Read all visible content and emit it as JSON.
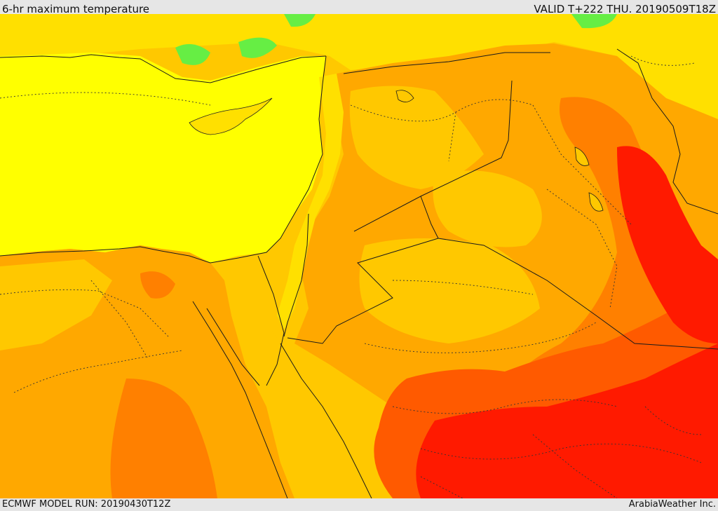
{
  "header": {
    "title": "6-hr maximum temperature",
    "valid": "VALID T+222 THU. 20190509T18Z"
  },
  "footer": {
    "model_run": "ECMWF MODEL RUN: 20190430T12Z",
    "credit": "ArabiaWeather Inc."
  },
  "colors": {
    "sea": "#ffff00",
    "light_yellow": "#ffe000",
    "gold": "#ffc800",
    "orange": "#ffa800",
    "dark_orange": "#ff8000",
    "red_orange": "#ff5a00",
    "red": "#ff1a00",
    "green": "#66ee44",
    "frame": "#e6e6e6"
  }
}
